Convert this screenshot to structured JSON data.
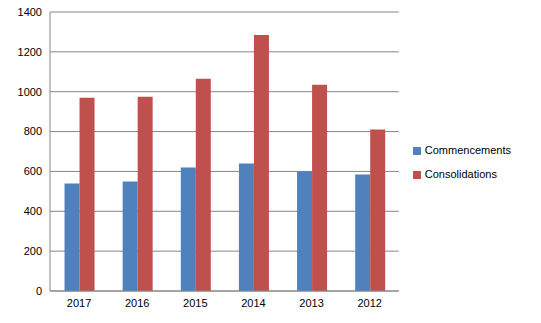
{
  "chart_data": {
    "type": "bar",
    "categories": [
      "2017",
      "2016",
      "2015",
      "2014",
      "2013",
      "2012"
    ],
    "series": [
      {
        "name": "Commencements",
        "color": "#4f81bd",
        "values": [
          540,
          550,
          620,
          640,
          600,
          585
        ]
      },
      {
        "name": "Consolidations",
        "color": "#c0504d",
        "values": [
          970,
          975,
          1065,
          1285,
          1035,
          810
        ]
      }
    ],
    "ylim": [
      0,
      1400
    ],
    "yticks": [
      0,
      200,
      400,
      600,
      800,
      1000,
      1200,
      1400
    ],
    "grid": true,
    "legend": "right"
  }
}
